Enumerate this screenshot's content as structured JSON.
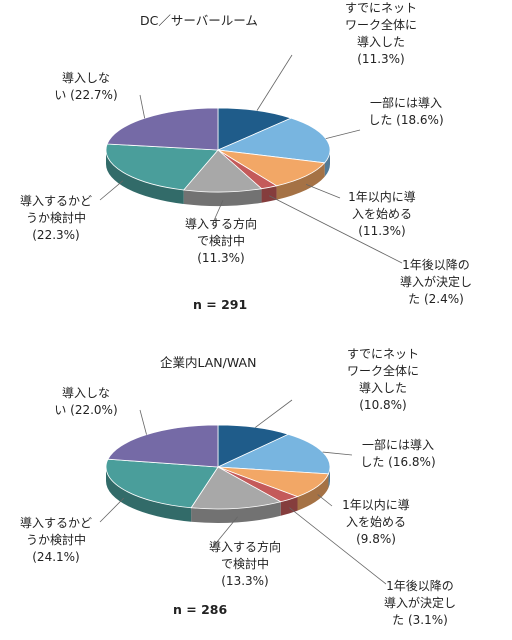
{
  "chart_data": [
    {
      "type": "pie",
      "title": "DC／サーバールーム",
      "n_label": "n = 291",
      "slices": [
        {
          "label": "すでにネット\nワーク全体に\n導入した\n(11.3%)",
          "value": 11.3,
          "color": "#1f5c8a"
        },
        {
          "label": "一部には導入\nした (18.6%)",
          "value": 18.6,
          "color": "#78b5e0"
        },
        {
          "label": "1年以内に導\n入を始める\n(11.3%)",
          "value": 11.3,
          "color": "#f2a766"
        },
        {
          "label": "1年後以降の\n導入が決定し\nた (2.4%)",
          "value": 2.4,
          "color": "#c45a5a"
        },
        {
          "label": "導入する方向\nで検討中\n(11.3%)",
          "value": 11.3,
          "color": "#a8a8a8"
        },
        {
          "label": "導入するかど\nうか検討中\n(22.3%)",
          "value": 22.3,
          "color": "#4a9e9b"
        },
        {
          "label": "導入しな\nい (22.7%)",
          "value": 22.7,
          "color": "#756aa6"
        }
      ]
    },
    {
      "type": "pie",
      "title": "企業内LAN/WAN",
      "n_label": "n = 286",
      "slices": [
        {
          "label": "すでにネット\nワーク全体に\n導入した\n(10.8%)",
          "value": 10.8,
          "color": "#1f5c8a"
        },
        {
          "label": "一部には導入\nした (16.8%)",
          "value": 16.8,
          "color": "#78b5e0"
        },
        {
          "label": "1年以内に導\n入を始める\n(9.8%)",
          "value": 9.8,
          "color": "#f2a766"
        },
        {
          "label": "1年後以降の\n導入が決定し\nた (3.1%)",
          "value": 3.1,
          "color": "#c45a5a"
        },
        {
          "label": "導入する方向\nで検討中\n(13.3%)",
          "value": 13.3,
          "color": "#a8a8a8"
        },
        {
          "label": "導入するかど\nうか検討中\n(24.1%)",
          "value": 24.1,
          "color": "#4a9e9b"
        },
        {
          "label": "導入しな\nい (22.0%)",
          "value": 22.0,
          "color": "#756aa6"
        }
      ]
    }
  ]
}
